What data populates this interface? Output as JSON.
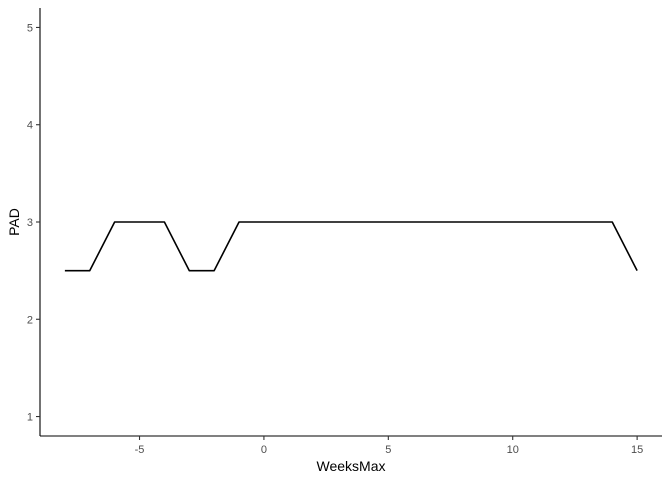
{
  "chart_data": {
    "type": "line",
    "title": "",
    "xlabel": "WeeksMax",
    "ylabel": "PAD",
    "xlim": [
      -9,
      16
    ],
    "ylim": [
      0.8,
      5.2
    ],
    "xticks": [
      -5,
      0,
      5,
      10,
      15
    ],
    "yticks": [
      1,
      2,
      3,
      4,
      5
    ],
    "xtick_labels": [
      "-5",
      "0",
      "5",
      "10",
      "15"
    ],
    "ytick_labels": [
      "1",
      "2",
      "3",
      "4",
      "5"
    ],
    "grid": false,
    "legend": "none",
    "series": [
      {
        "x": [
          -8,
          -7,
          -6,
          -5,
          -4,
          -3,
          -2,
          -1,
          0,
          1,
          2,
          3,
          4,
          5,
          6,
          7,
          8,
          9,
          10,
          11,
          12,
          13,
          14,
          15
        ],
        "y": [
          2.5,
          2.5,
          3,
          3,
          3,
          2.5,
          2.5,
          3,
          3,
          3,
          3,
          3,
          3,
          3,
          3,
          3,
          3,
          3,
          3,
          3,
          3,
          3,
          3,
          2.5
        ],
        "color": "#000000"
      }
    ]
  }
}
